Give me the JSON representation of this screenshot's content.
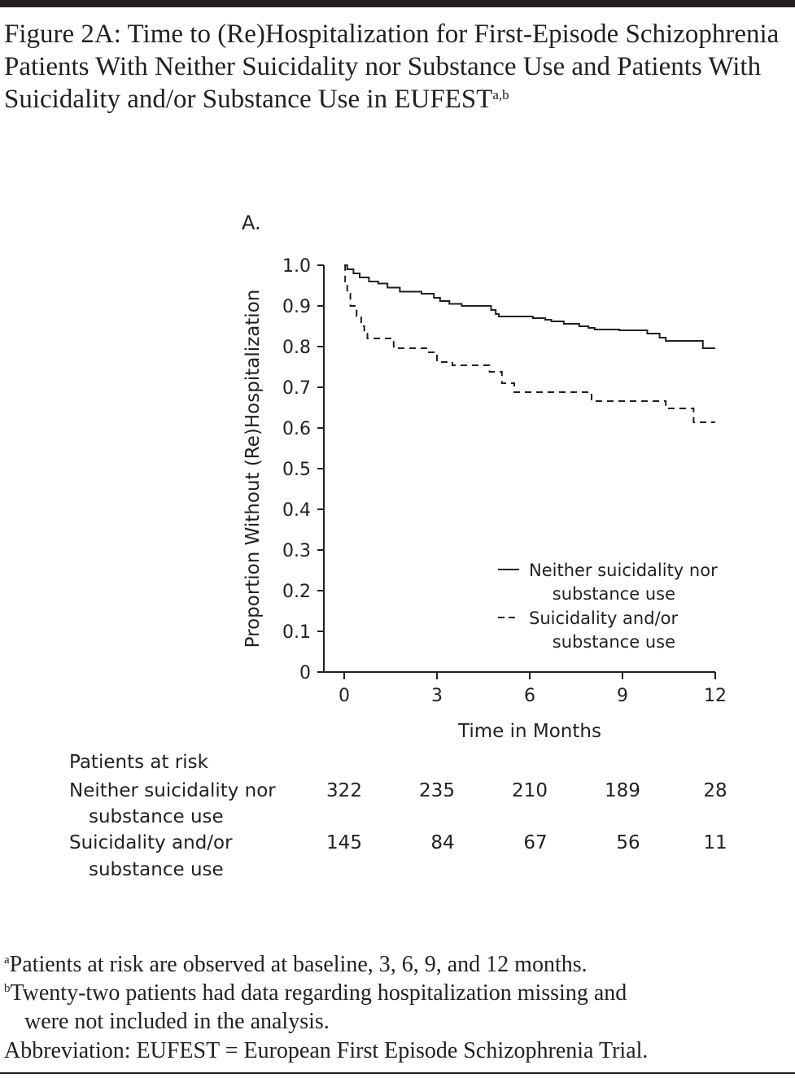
{
  "title": {
    "text": "Figure 2A: Time to (Re)Hospitalization for First-Episode Schizophrenia Patients With Neither Suicidality nor Substance Use and Patients With Suicidality and/or Substance Use in EUFEST",
    "superscript": "a,b"
  },
  "chart_data": {
    "type": "line",
    "subtype": "kaplan-meier step",
    "panel_label": "A.",
    "xlabel": "Time in Months",
    "ylabel": "Proportion Without (Re)Hospitalization",
    "xlim": [
      0,
      12
    ],
    "ylim": [
      0,
      1.0
    ],
    "xticks": [
      "0",
      "3",
      "6",
      "9",
      "12"
    ],
    "yticks": [
      "0",
      "0.1",
      "0.2",
      "0.3",
      "0.4",
      "0.5",
      "0.6",
      "0.7",
      "0.8",
      "0.9",
      "1.0"
    ],
    "grid": false,
    "legend_placement": "bottom-right",
    "series": [
      {
        "name": "Neither suicidality nor substance use",
        "legend_lines": [
          "Neither suicidality nor",
          "substance use"
        ],
        "style": "solid",
        "points": [
          [
            0,
            1.0
          ],
          [
            0.1,
            0.99
          ],
          [
            0.3,
            0.98
          ],
          [
            0.5,
            0.97
          ],
          [
            0.8,
            0.96
          ],
          [
            1.1,
            0.955
          ],
          [
            1.4,
            0.945
          ],
          [
            1.8,
            0.935
          ],
          [
            2.5,
            0.93
          ],
          [
            2.9,
            0.92
          ],
          [
            3.1,
            0.912
          ],
          [
            3.4,
            0.905
          ],
          [
            3.8,
            0.9
          ],
          [
            4.6,
            0.9
          ],
          [
            4.75,
            0.89
          ],
          [
            4.9,
            0.88
          ],
          [
            5.0,
            0.874
          ],
          [
            6.1,
            0.87
          ],
          [
            6.5,
            0.866
          ],
          [
            6.7,
            0.862
          ],
          [
            7.1,
            0.856
          ],
          [
            7.6,
            0.85
          ],
          [
            7.9,
            0.846
          ],
          [
            8.1,
            0.842
          ],
          [
            8.9,
            0.84
          ],
          [
            9.8,
            0.832
          ],
          [
            10.2,
            0.822
          ],
          [
            10.4,
            0.814
          ],
          [
            11.6,
            0.796
          ],
          [
            12,
            0.796
          ]
        ]
      },
      {
        "name": "Suicidality and/or substance use",
        "legend_lines": [
          "Suicidality and/or",
          "substance use"
        ],
        "style": "dashed",
        "points": [
          [
            0,
            1.0
          ],
          [
            0.03,
            0.96
          ],
          [
            0.1,
            0.93
          ],
          [
            0.2,
            0.9
          ],
          [
            0.4,
            0.875
          ],
          [
            0.55,
            0.85
          ],
          [
            0.65,
            0.832
          ],
          [
            0.75,
            0.82
          ],
          [
            1.6,
            0.796
          ],
          [
            2.7,
            0.786
          ],
          [
            3.0,
            0.762
          ],
          [
            3.5,
            0.754
          ],
          [
            4.7,
            0.738
          ],
          [
            5.1,
            0.71
          ],
          [
            5.5,
            0.688
          ],
          [
            8.0,
            0.666
          ],
          [
            10.4,
            0.648
          ],
          [
            11.3,
            0.614
          ],
          [
            12,
            0.614
          ]
        ]
      }
    ],
    "risk_table": {
      "heading": "Patients at risk",
      "rows": [
        {
          "label_lines": [
            "Neither suicidality nor",
            "substance use"
          ],
          "values": [
            "322",
            "235",
            "210",
            "189",
            "28"
          ]
        },
        {
          "label_lines": [
            "Suicidality and/or",
            "substance use"
          ],
          "values": [
            "145",
            "84",
            "67",
            "56",
            "11"
          ]
        }
      ]
    }
  },
  "footnotes": [
    {
      "mark": "a",
      "text": "Patients at risk are observed at baseline, 3, 6, 9, and 12 months."
    },
    {
      "mark": "b",
      "text": "Twenty-two patients had data regarding hospitalization missing and"
    },
    {
      "mark": "",
      "text": "were not included in the analysis."
    },
    {
      "mark": "",
      "text": "Abbreviation: EUFEST = European First Episode Schizophrenia Trial."
    }
  ]
}
